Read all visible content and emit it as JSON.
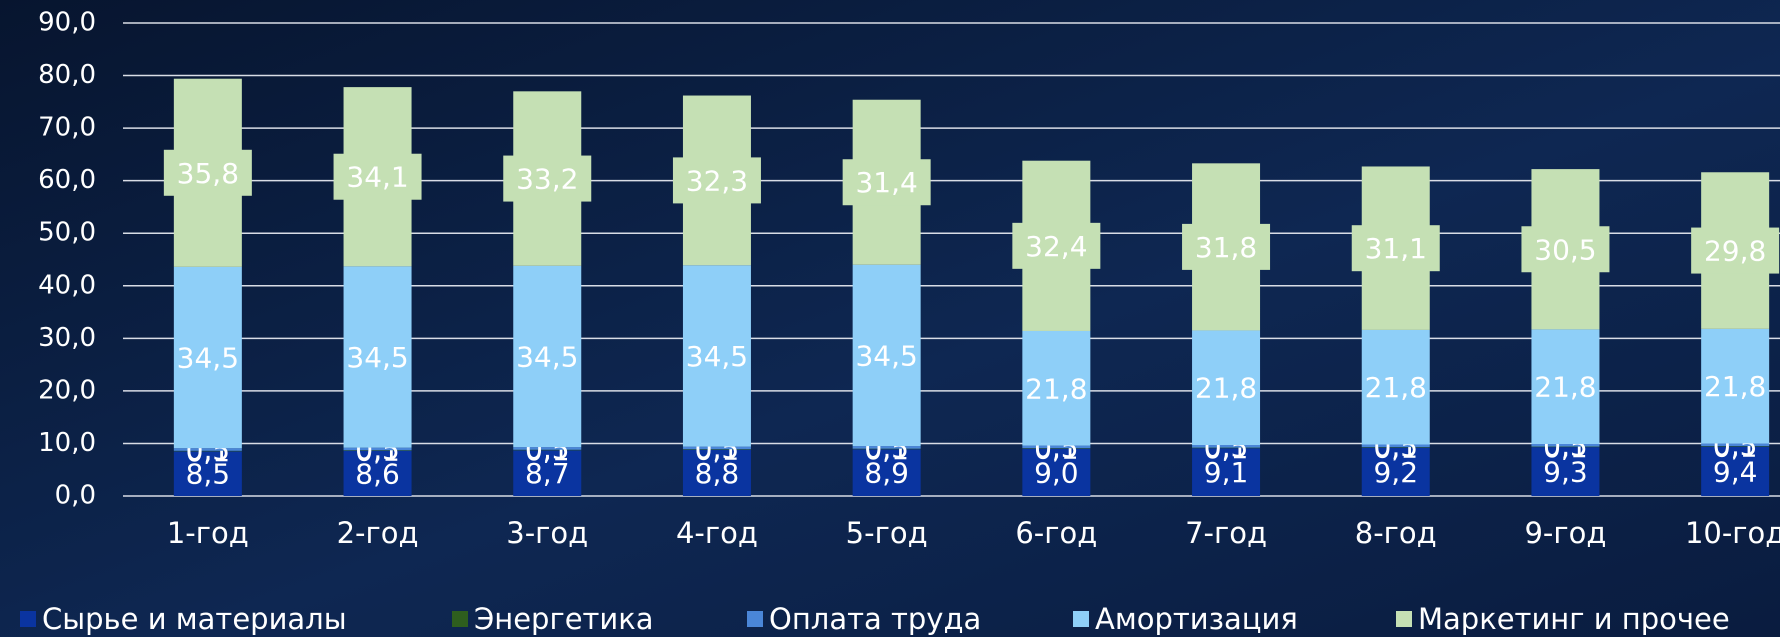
{
  "chart_data": {
    "type": "stacked_bar",
    "categories": [
      "1-год",
      "2-год",
      "3-год",
      "4-год",
      "5-год",
      "6-год",
      "7-год",
      "8-год",
      "9-год",
      "10-год"
    ],
    "series": [
      {
        "name": "Сырье и материалы",
        "color": "#0a34a0",
        "values": [
          8.5,
          8.6,
          8.7,
          8.8,
          8.9,
          9.0,
          9.1,
          9.2,
          9.3,
          9.4
        ],
        "value_labels": [
          "8,5",
          "8,6",
          "8,7",
          "8,8",
          "8,9",
          "9,0",
          "9,1",
          "9,2",
          "9,3",
          "9,4"
        ]
      },
      {
        "name": "Энергетика",
        "color": "#2e5e1e",
        "values": [
          0.1,
          0.1,
          0.1,
          0.1,
          0.1,
          0.1,
          0.1,
          0.1,
          0.1,
          0.1
        ],
        "value_labels": [
          "0,1",
          "0,1",
          "0,1",
          "0,1",
          "0,1",
          "0,1",
          "0,1",
          "0,1",
          "0,1",
          "0,1"
        ]
      },
      {
        "name": "Оплата труда",
        "color": "#4a86d8",
        "values": [
          0.5,
          0.5,
          0.5,
          0.5,
          0.5,
          0.5,
          0.5,
          0.5,
          0.5,
          0.5
        ],
        "value_labels": [
          "0,5",
          "0,5",
          "0,5",
          "0,5",
          "0,5",
          "0,5",
          "0,5",
          "0,5",
          "0,5",
          "0,5"
        ]
      },
      {
        "name": "Амортизация",
        "color": "#8ecff8",
        "values": [
          34.5,
          34.5,
          34.5,
          34.5,
          34.5,
          21.8,
          21.8,
          21.8,
          21.8,
          21.8
        ],
        "value_labels": [
          "34,5",
          "34,5",
          "34,5",
          "34,5",
          "34,5",
          "21,8",
          "21,8",
          "21,8",
          "21,8",
          "21,8"
        ]
      },
      {
        "name": "Маркетинг и прочее",
        "color": "#c5e0b4",
        "values": [
          35.8,
          34.1,
          33.2,
          32.3,
          31.4,
          32.4,
          31.8,
          31.1,
          30.5,
          29.8
        ],
        "value_labels": [
          "35,8",
          "34,1",
          "33,2",
          "32,3",
          "31,4",
          "32,4",
          "31,8",
          "31,1",
          "30,5",
          "29,8"
        ]
      }
    ],
    "ylim": [
      0,
      90
    ],
    "yticks": [
      {
        "value": 0,
        "label": "0,0"
      },
      {
        "value": 10,
        "label": "10,0"
      },
      {
        "value": 20,
        "label": "20,0"
      },
      {
        "value": 30,
        "label": "30,0"
      },
      {
        "value": 40,
        "label": "40,0"
      },
      {
        "value": 50,
        "label": "50,0"
      },
      {
        "value": 60,
        "label": "60,0"
      },
      {
        "value": 70,
        "label": "70,0"
      },
      {
        "value": 80,
        "label": "80,0"
      },
      {
        "value": 90,
        "label": "90,0"
      }
    ],
    "grid": true,
    "legend": "bottom"
  }
}
